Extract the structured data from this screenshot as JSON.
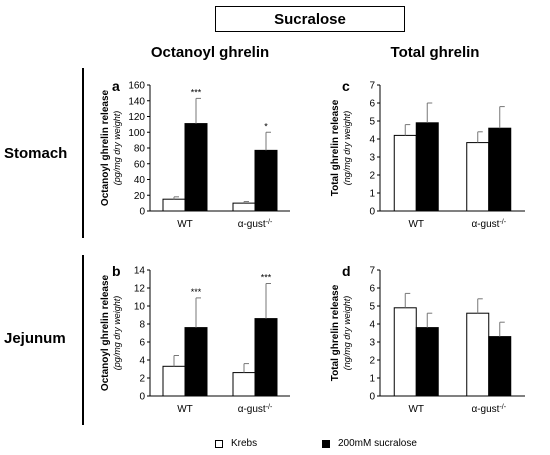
{
  "header": {
    "title": "Sucralose"
  },
  "columns": {
    "left": "Octanoyl ghrelin",
    "right": "Total ghrelin"
  },
  "rows": {
    "top": "Stomach",
    "bottom": "Jejunum"
  },
  "legend": {
    "items": [
      {
        "label": "Krebs",
        "color": "#ffffff"
      },
      {
        "label": "200mM sucralose",
        "color": "#000000"
      }
    ]
  },
  "chart_data": [
    {
      "panel": "a",
      "type": "bar",
      "ylabel": "Octanoyl ghrelin release",
      "ylabel2": "(pg/mg dry weight)",
      "categories": [
        "WT",
        "α-gust-/-"
      ],
      "ylim": [
        0,
        160
      ],
      "yticks": [
        0,
        20,
        40,
        60,
        80,
        100,
        120,
        140,
        160
      ],
      "series": [
        {
          "name": "Krebs",
          "color": "#ffffff",
          "values": [
            15,
            10
          ],
          "errors": [
            3,
            2
          ]
        },
        {
          "name": "200mM sucralose",
          "color": "#000000",
          "values": [
            111,
            77
          ],
          "errors": [
            32,
            23
          ]
        }
      ],
      "significance": [
        "***",
        "*"
      ]
    },
    {
      "panel": "c",
      "type": "bar",
      "ylabel": "Total ghrelin release",
      "ylabel2": "(ng/mg dry weight)",
      "categories": [
        "WT",
        "α-gust-/-"
      ],
      "ylim": [
        0,
        7
      ],
      "yticks": [
        0,
        1,
        2,
        3,
        4,
        5,
        6,
        7
      ],
      "series": [
        {
          "name": "Krebs",
          "color": "#ffffff",
          "values": [
            4.2,
            3.8
          ],
          "errors": [
            0.6,
            0.6
          ]
        },
        {
          "name": "200mM sucralose",
          "color": "#000000",
          "values": [
            4.9,
            4.6
          ],
          "errors": [
            1.1,
            1.2
          ]
        }
      ],
      "significance": [
        "",
        ""
      ]
    },
    {
      "panel": "b",
      "type": "bar",
      "ylabel": "Octanoyl ghrelin release",
      "ylabel2": "(pg/mg dry weight)",
      "categories": [
        "WT",
        "α-gust-/-"
      ],
      "ylim": [
        0,
        14
      ],
      "yticks": [
        0,
        2,
        4,
        6,
        8,
        10,
        12,
        14
      ],
      "series": [
        {
          "name": "Krebs",
          "color": "#ffffff",
          "values": [
            3.3,
            2.6
          ],
          "errors": [
            1.2,
            1.0
          ]
        },
        {
          "name": "200mM sucralose",
          "color": "#000000",
          "values": [
            7.6,
            8.6
          ],
          "errors": [
            3.3,
            3.9
          ]
        }
      ],
      "significance": [
        "***",
        "***"
      ]
    },
    {
      "panel": "d",
      "type": "bar",
      "ylabel": "Total ghrelin release",
      "ylabel2": "(ng/mg dry weight)",
      "categories": [
        "WT",
        "α-gust-/-"
      ],
      "ylim": [
        0,
        7
      ],
      "yticks": [
        0,
        1,
        2,
        3,
        4,
        5,
        6,
        7
      ],
      "series": [
        {
          "name": "Krebs",
          "color": "#ffffff",
          "values": [
            4.9,
            4.6
          ],
          "errors": [
            0.8,
            0.8
          ]
        },
        {
          "name": "200mM sucralose",
          "color": "#000000",
          "values": [
            3.8,
            3.3
          ],
          "errors": [
            0.8,
            0.8
          ]
        }
      ],
      "significance": [
        "",
        ""
      ]
    }
  ]
}
